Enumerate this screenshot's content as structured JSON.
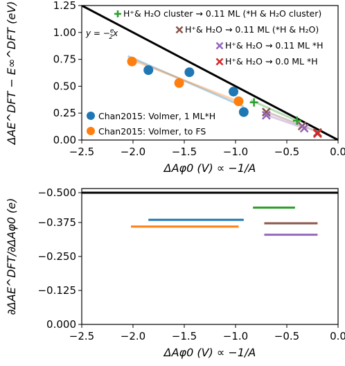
{
  "chart_data": [
    {
      "type": "scatter",
      "xlabel": "ΔAφ0 (V) ∝ −1/A",
      "ylabel": "ΔAE^DFT − E∞^DFT (eV)",
      "xlim": [
        -2.5,
        0.0
      ],
      "ylim": [
        0.0,
        1.25
      ],
      "xticks": [
        "−2.5",
        "−2.0",
        "−1.5",
        "−1.0",
        "−0.5",
        "0.0"
      ],
      "yticks": [
        "0.00",
        "0.25",
        "0.50",
        "0.75",
        "1.00",
        "1.25"
      ],
      "reference_line": {
        "label": "y = −(e/2)x",
        "slope": -0.5,
        "color": "#000000"
      },
      "legend_top_right": [
        {
          "label": "H⁺& H₂O cluster ⇝ 0.11 ML (*H & H₂O cluster)",
          "marker": "plus",
          "color": "#2ca02c"
        },
        {
          "label": "H⁺& H₂O ⇝ 0.11 ML (*H & H₂O)",
          "marker": "x",
          "color": "#8c564b"
        },
        {
          "label": "H⁺& H₂O ⇝ 0.11 ML *H",
          "marker": "x",
          "color": "#9467bd"
        },
        {
          "label": "H⁺& H₂O ⇝ 0.0 ML *H",
          "marker": "x",
          "color": "#d62728"
        }
      ],
      "legend_bottom_left": [
        {
          "label": "Chan2015: Volmer, 1 ML*H",
          "marker": "circle",
          "color": "#1f77b4"
        },
        {
          "label": "Chan2015: Volmer, to FS",
          "marker": "circle",
          "color": "#ff7f0e"
        }
      ],
      "series": [
        {
          "name": "Chan2015: Volmer, 1 ML*H",
          "marker": "circle",
          "color": "#1f77b4",
          "points": [
            [
              -1.85,
              0.65
            ],
            [
              -1.45,
              0.63
            ],
            [
              -1.02,
              0.45
            ],
            [
              -0.92,
              0.26
            ]
          ],
          "fit": {
            "x": [
              -2.05,
              -0.92
            ],
            "y": [
              0.78,
              0.31
            ]
          }
        },
        {
          "name": "Chan2015: Volmer, to FS",
          "marker": "circle",
          "color": "#ff7f0e",
          "points": [
            [
              -2.01,
              0.73
            ],
            [
              -1.55,
              0.53
            ],
            [
              -0.97,
              0.36
            ]
          ],
          "fit": {
            "x": [
              -2.05,
              -0.95
            ],
            "y": [
              0.76,
              0.35
            ]
          }
        },
        {
          "name": "H⁺& H₂O cluster ⇝ 0.11 ML (*H & H₂O cluster)",
          "marker": "plus",
          "color": "#2ca02c",
          "points": [
            [
              -0.82,
              0.35
            ],
            [
              -0.4,
              0.18
            ]
          ],
          "fit": {
            "x": [
              -0.85,
              -0.38
            ],
            "y": [
              0.37,
              0.17
            ]
          }
        },
        {
          "name": "H⁺& H₂O ⇝ 0.11 ML (*H & H₂O)",
          "marker": "x",
          "color": "#8c564b",
          "points": [
            [
              -0.7,
              0.26
            ],
            [
              -0.35,
              0.13
            ],
            [
              -0.2,
              0.07
            ]
          ],
          "fit": {
            "x": [
              -0.72,
              -0.18
            ],
            "y": [
              0.27,
              0.07
            ]
          }
        },
        {
          "name": "H⁺& H₂O ⇝ 0.11 ML *H",
          "marker": "x",
          "color": "#9467bd",
          "points": [
            [
              -0.7,
              0.23
            ],
            [
              -0.33,
              0.11
            ]
          ],
          "fit": {
            "x": [
              -0.72,
              -0.3
            ],
            "y": [
              0.24,
              0.1
            ]
          }
        },
        {
          "name": "H⁺& H₂O ⇝ 0.0 ML *H",
          "marker": "x",
          "color": "#d62728",
          "points": [
            [
              -0.2,
              0.06
            ]
          ],
          "fit": null
        }
      ]
    },
    {
      "type": "line",
      "xlabel": "ΔAφ0 (V) ∝ −1/A",
      "ylabel": "∂ΔAE^DFT/∂ΔAφ0 (e)",
      "xlim": [
        -2.5,
        0.0
      ],
      "ylim": [
        0.0,
        -0.5
      ],
      "xticks": [
        "−2.5",
        "−2.0",
        "−1.5",
        "−1.0",
        "−0.5",
        "0.0"
      ],
      "yticks": [
        "0.000",
        "−0.125",
        "−0.250",
        "−0.375",
        "−0.500"
      ],
      "reference_value": -0.5,
      "segments": [
        {
          "color": "#2ca02c",
          "x": [
            -0.83,
            -0.42
          ],
          "y": -0.43
        },
        {
          "color": "#1f77b4",
          "x": [
            -1.85,
            -0.92
          ],
          "y": -0.385
        },
        {
          "color": "#8c564b",
          "x": [
            -0.72,
            -0.2
          ],
          "y": -0.372
        },
        {
          "color": "#ff7f0e",
          "x": [
            -2.02,
            -0.97
          ],
          "y": -0.36
        },
        {
          "color": "#9467bd",
          "x": [
            -0.72,
            -0.2
          ],
          "y": -0.33
        }
      ]
    }
  ]
}
